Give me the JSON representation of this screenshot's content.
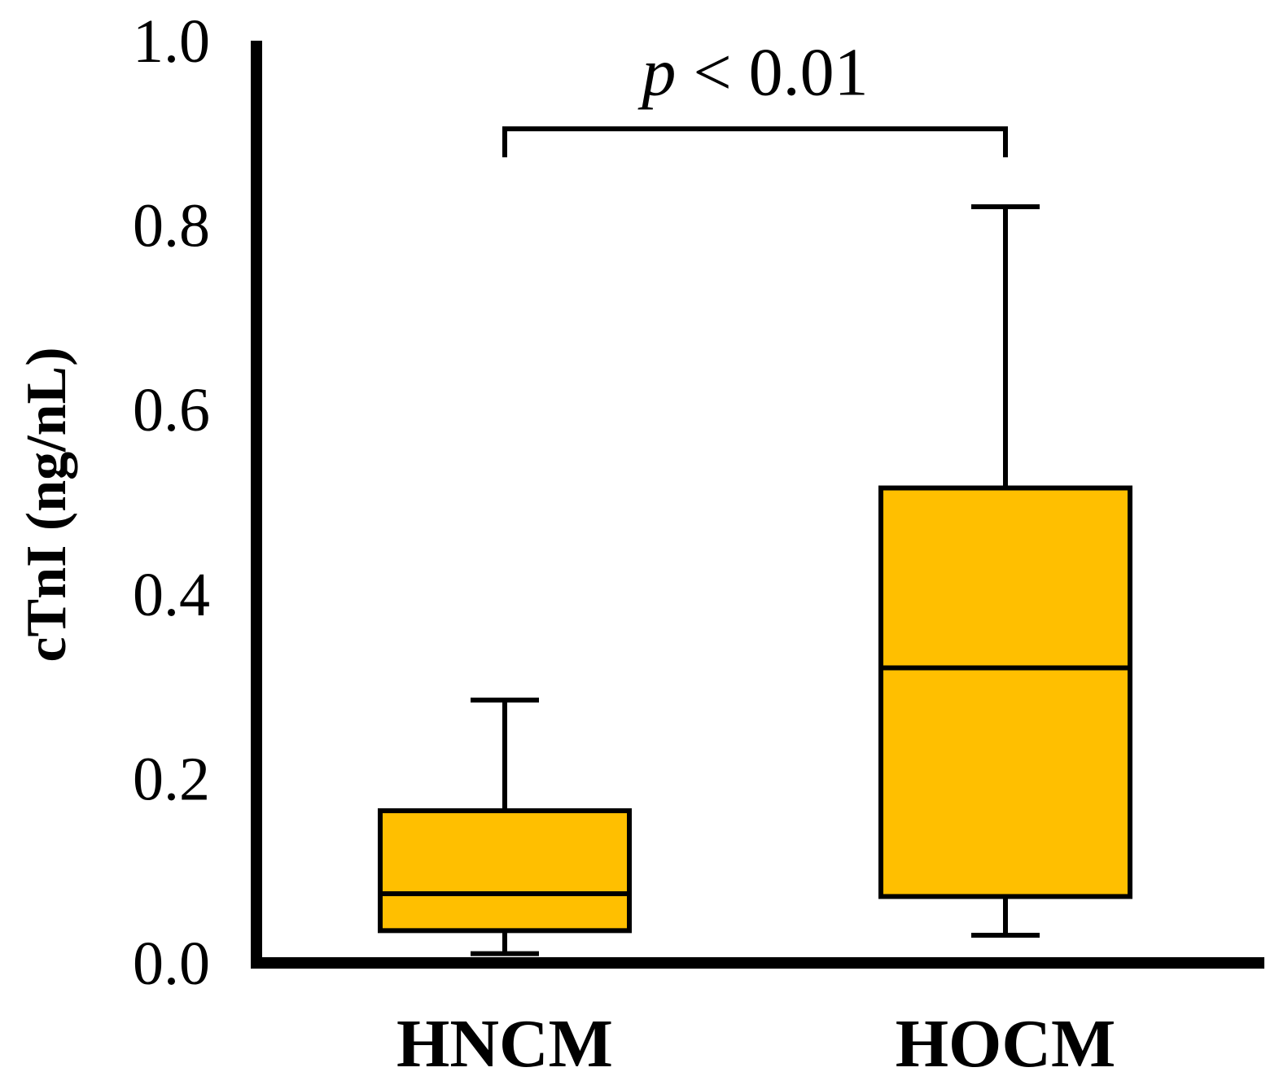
{
  "chart_data": {
    "type": "box",
    "ylabel": "cTnI (ng/nL)",
    "xlabel": "",
    "ylim": [
      0.0,
      1.0
    ],
    "yticks": [
      {
        "value": 0.0,
        "label": "0.0"
      },
      {
        "value": 0.2,
        "label": "0.2"
      },
      {
        "value": 0.4,
        "label": "0.4"
      },
      {
        "value": 0.6,
        "label": "0.6"
      },
      {
        "value": 0.8,
        "label": "0.8"
      },
      {
        "value": 1.0,
        "label": "1.0"
      }
    ],
    "categories": [
      "HNCM",
      "HOCM"
    ],
    "boxes": [
      {
        "category": "HNCM",
        "whisker_low": 0.01,
        "q1": 0.035,
        "median": 0.075,
        "q3": 0.165,
        "whisker_high": 0.285
      },
      {
        "category": "HOCM",
        "whisker_low": 0.03,
        "q1": 0.072,
        "median": 0.32,
        "q3": 0.515,
        "whisker_high": 0.82
      }
    ],
    "significance": {
      "from": "HNCM",
      "to": "HOCM",
      "level": 0.885,
      "p_symbol": "p",
      "relation": "< 0.01"
    },
    "box_color": "#FFBF00",
    "line_color": "#000000",
    "grid": false,
    "legend": "none"
  }
}
